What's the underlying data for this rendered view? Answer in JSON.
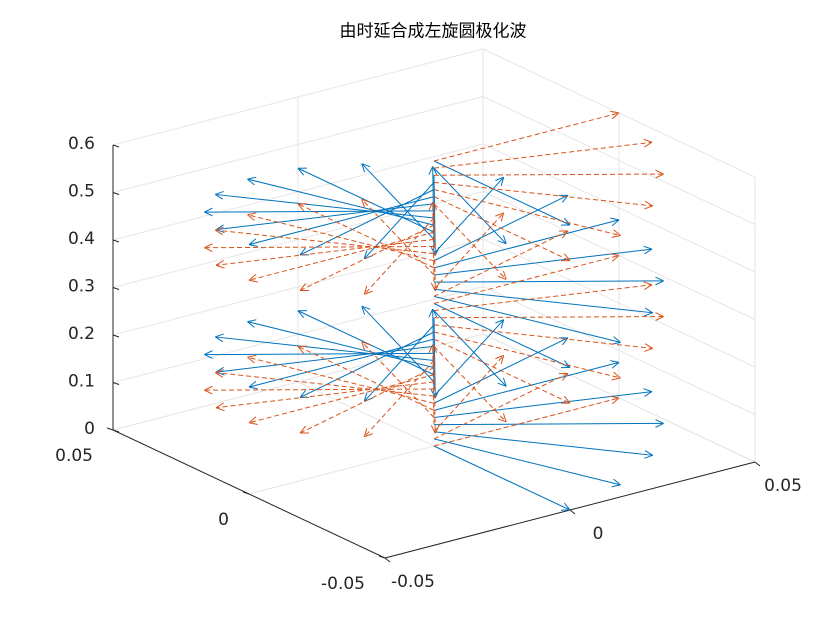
{
  "chart_data": {
    "type": "quiver3",
    "title": "由时延合成左旋圆极化波",
    "xlim": [
      -0.05,
      0.05
    ],
    "xticks": [
      -0.05,
      0,
      0.05
    ],
    "ylim": [
      -0.05,
      0.05
    ],
    "yticks": [
      -0.05,
      0,
      0.05
    ],
    "zlim": [
      0,
      0.6
    ],
    "zticks": [
      0,
      0.1,
      0.2,
      0.3,
      0.4,
      0.5,
      0.6
    ],
    "grid": true,
    "series": [
      {
        "color": "#0072bd",
        "line": "solid",
        "magnitude": 0.05,
        "z": [
          0,
          0.015,
          0.03,
          0.045,
          0.06,
          0.075,
          0.09,
          0.105,
          0.12,
          0.135,
          0.15,
          0.165,
          0.18,
          0.195,
          0.21,
          0.225,
          0.24,
          0.255,
          0.27,
          0.285,
          0.3,
          0.315,
          0.33,
          0.345,
          0.36,
          0.375,
          0.39,
          0.405,
          0.42,
          0.435,
          0.45,
          0.465,
          0.48,
          0.495,
          0.51,
          0.525,
          0.54,
          0.555,
          0.57,
          0.585,
          0.6
        ],
        "angle": [
          -90,
          -72,
          -54,
          -36,
          -18,
          0,
          18,
          36,
          54,
          72,
          90,
          108,
          126,
          144,
          162,
          180,
          198,
          216,
          234,
          252,
          270,
          288,
          306,
          324,
          342,
          360,
          378,
          396,
          414,
          432,
          450,
          468,
          486,
          504,
          522,
          540,
          558,
          576,
          594,
          612,
          630
        ]
      },
      {
        "color": "#d95319",
        "line": "dashed",
        "magnitude": 0.05,
        "z": [
          0,
          0.015,
          0.03,
          0.045,
          0.06,
          0.075,
          0.09,
          0.105,
          0.12,
          0.135,
          0.15,
          0.165,
          0.18,
          0.195,
          0.21,
          0.225,
          0.24,
          0.255,
          0.27,
          0.285,
          0.3,
          0.315,
          0.33,
          0.345,
          0.36,
          0.375,
          0.39,
          0.405,
          0.42,
          0.435,
          0.45,
          0.465,
          0.48,
          0.495,
          0.51,
          0.525,
          0.54,
          0.555,
          0.57,
          0.585,
          0.6
        ],
        "angle": [
          0,
          18,
          36,
          54,
          72,
          90,
          108,
          126,
          144,
          162,
          180,
          198,
          216,
          234,
          252,
          270,
          288,
          306,
          324,
          342,
          360,
          378,
          396,
          414,
          432,
          450,
          468,
          486,
          504,
          522,
          540,
          558,
          576,
          594,
          612,
          630,
          648,
          666,
          684,
          702,
          720
        ]
      }
    ]
  }
}
